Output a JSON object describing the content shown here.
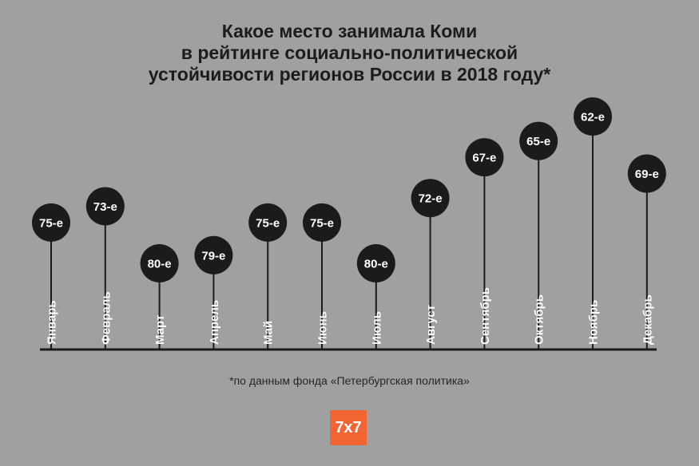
{
  "chart_data": {
    "type": "lollipop",
    "title": [
      "Какое место занимала Коми",
      "в рейтинге социально-политической",
      "устойчивости регионов России в 2018 году*"
    ],
    "categories": [
      "Январь",
      "Февраль",
      "Март",
      "Апрель",
      "Май",
      "Июнь",
      "Июль",
      "Август",
      "Сентябрь",
      "Октябрь",
      "Ноябрь",
      "Декабрь"
    ],
    "values": [
      75,
      73,
      80,
      79,
      75,
      75,
      80,
      72,
      67,
      65,
      62,
      69
    ],
    "value_labels": [
      "75-е",
      "73-е",
      "80-е",
      "79-е",
      "75-е",
      "75-е",
      "80-е",
      "72-е",
      "67-е",
      "65-е",
      "62-е",
      "69-е"
    ],
    "y_axis": "rank (inverted, lower number is higher)",
    "footnote": "*по данным фонда «Петербургская политика»"
  },
  "colors": {
    "background": "#a0a0a0",
    "marker": "#1b1b1b",
    "marker_text": "#ffffff",
    "line": "#1b1b1b",
    "logo": "#f26532"
  },
  "logo": {
    "text": "7x7"
  }
}
